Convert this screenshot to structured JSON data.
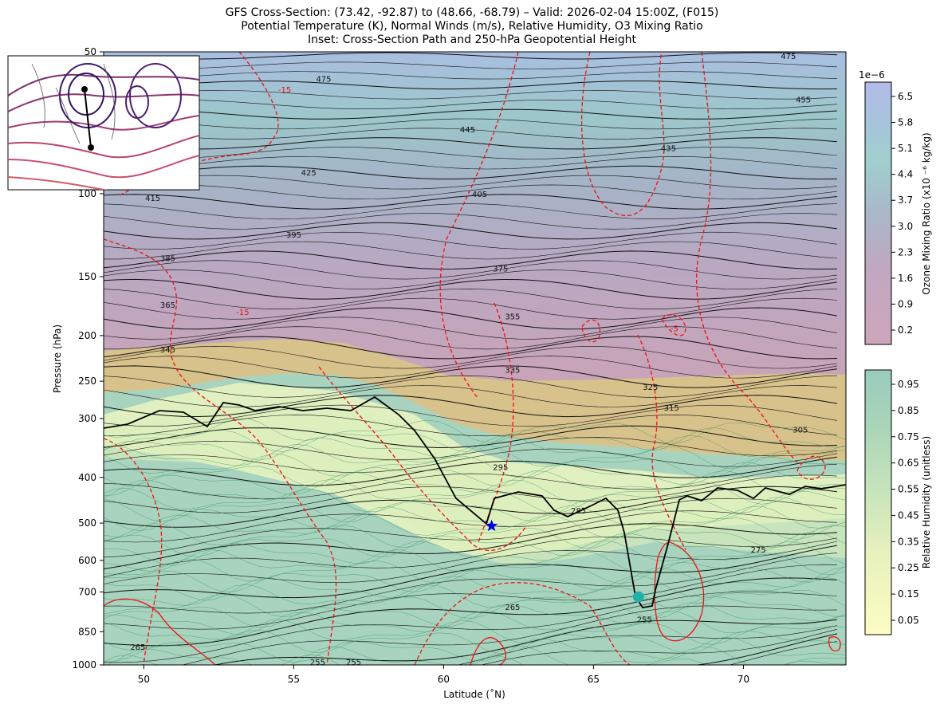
{
  "titles": {
    "line1": "GFS Cross-Section: (73.42, -92.87) to (48.66, -68.79) – Valid: 2026-02-04 15:00Z, (F015)",
    "line2": "Potential Temperature (K), Normal Winds (m/s), Relative Humidity, O3 Mixing Ratio",
    "line3": "Inset: Cross-Section Path and 250-hPa Geopotential Height"
  },
  "chart_data": {
    "type": "cross-section",
    "xlabel": "Latitude (˚N)",
    "ylabel": "Pressure (hPa)",
    "xlim": [
      48.66,
      73.42
    ],
    "ylim": [
      1000,
      50
    ],
    "y_scale": "log",
    "x_ticks": [
      50,
      55,
      60,
      65,
      70
    ],
    "y_ticks": [
      50,
      100,
      150,
      200,
      250,
      300,
      400,
      500,
      600,
      700,
      850,
      1000
    ],
    "theta_labels": [
      {
        "value": "475",
        "lat": 56.0,
        "p": 57
      },
      {
        "value": "475",
        "lat": 71.5,
        "p": 51
      },
      {
        "value": "455",
        "lat": 72.0,
        "p": 63
      },
      {
        "value": "445",
        "lat": 60.8,
        "p": 73
      },
      {
        "value": "435",
        "lat": 67.5,
        "p": 80
      },
      {
        "value": "425",
        "lat": 55.5,
        "p": 90
      },
      {
        "value": "415",
        "lat": 50.3,
        "p": 102
      },
      {
        "value": "405",
        "lat": 61.2,
        "p": 100
      },
      {
        "value": "395",
        "lat": 55.0,
        "p": 122
      },
      {
        "value": "385",
        "lat": 50.8,
        "p": 137
      },
      {
        "value": "375",
        "lat": 61.9,
        "p": 144
      },
      {
        "value": "365",
        "lat": 50.8,
        "p": 172
      },
      {
        "value": "355",
        "lat": 62.3,
        "p": 182
      },
      {
        "value": "345",
        "lat": 50.8,
        "p": 214
      },
      {
        "value": "335",
        "lat": 62.3,
        "p": 236
      },
      {
        "value": "325",
        "lat": 66.9,
        "p": 257
      },
      {
        "value": "315",
        "lat": 67.6,
        "p": 284
      },
      {
        "value": "305",
        "lat": 71.9,
        "p": 316
      },
      {
        "value": "295",
        "lat": 61.9,
        "p": 380
      },
      {
        "value": "285",
        "lat": 64.5,
        "p": 470
      },
      {
        "value": "275",
        "lat": 70.5,
        "p": 568
      },
      {
        "value": "265",
        "lat": 62.3,
        "p": 752
      },
      {
        "value": "265",
        "lat": 49.8,
        "p": 915
      },
      {
        "value": "255",
        "lat": 66.7,
        "p": 800
      },
      {
        "value": "255",
        "lat": 57.0,
        "p": 985
      },
      {
        "value": "255",
        "lat": 55.8,
        "p": 985
      }
    ],
    "wind_labels": [
      {
        "value": "-15",
        "lat": 53.3,
        "p": 178
      },
      {
        "value": "-15",
        "lat": 54.7,
        "p": 60
      },
      {
        "value": "-5",
        "lat": 67.7,
        "p": 193
      }
    ],
    "markers": [
      {
        "shape": "star",
        "color": "#0000dd",
        "lat": 61.6,
        "p": 507
      },
      {
        "shape": "circle",
        "color": "#20b2aa",
        "lat": 66.5,
        "p": 717
      }
    ],
    "colorbars": [
      {
        "name": "ozone",
        "label": "Ozone Mixing Ratio (x10 ⁻⁶ kg/kg)",
        "scale_note": "1e−6",
        "ticks": [
          "6.5",
          "5.8",
          "5.1",
          "4.4",
          "3.7",
          "3.0",
          "2.3",
          "1.6",
          "0.9",
          "0.2"
        ],
        "colors": [
          "#cfa6bb",
          "#bfa8c0",
          "#a9b8c8",
          "#9fcfcd",
          "#a6c4dc",
          "#b4bae9"
        ]
      },
      {
        "name": "relative-humidity",
        "label": "Relative Humidity (unitless)",
        "ticks": [
          "0.95",
          "0.85",
          "0.75",
          "0.65",
          "0.55",
          "0.45",
          "0.35",
          "0.25",
          "0.15",
          "0.05"
        ],
        "colors": [
          "#fcfcc3",
          "#e8f2bd",
          "#c6e4bb",
          "#a8d4b8",
          "#99ccbe"
        ]
      }
    ]
  }
}
